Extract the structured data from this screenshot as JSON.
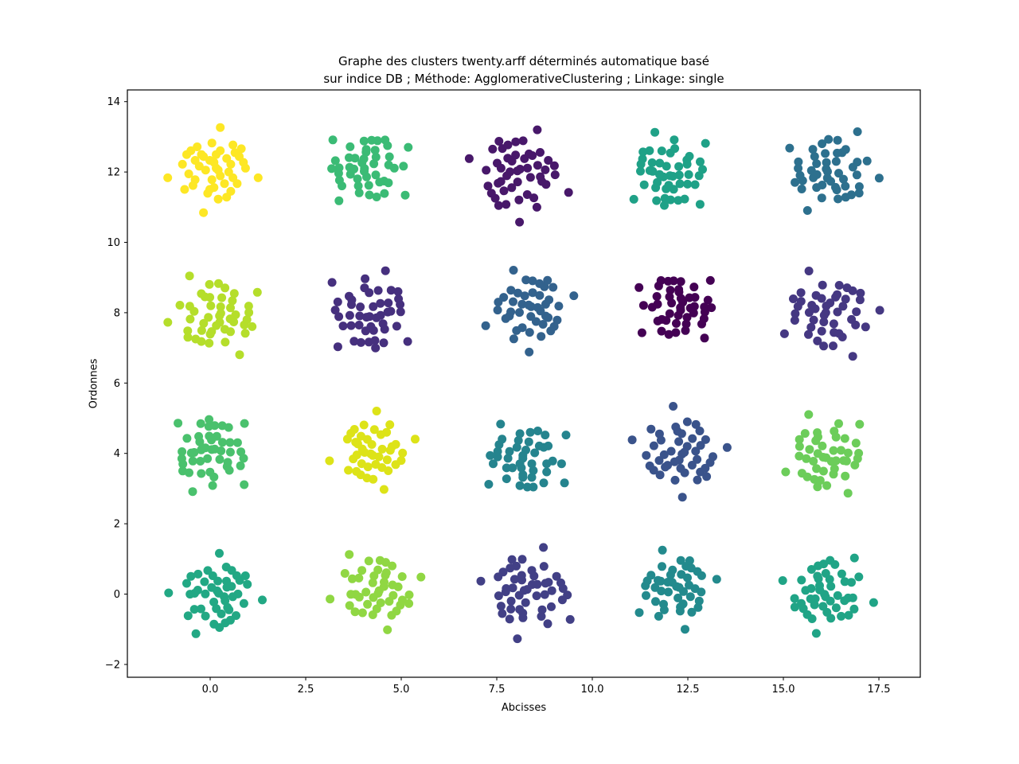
{
  "figure": {
    "title_line1": "Graphe des clusters twenty.arff déterminés automatique basé",
    "title_line2": "sur indice DB ; Méthode: AgglomerativeClustering ; Linkage: single"
  },
  "chart_data": {
    "type": "scatter",
    "title": "Graphe des clusters twenty.arff déterminés automatique basé sur indice DB ; Méthode: AgglomerativeClustering ; Linkage: single",
    "xlabel": "Abcisses",
    "ylabel": "Ordonnes",
    "xlim": [
      -2.167,
      18.583
    ],
    "ylim": [
      -2.364,
      14.333
    ],
    "grid": false,
    "legend": "none",
    "marker_radius_px": 5.5,
    "xticks": [
      {
        "v": 0.0,
        "label": "0.0"
      },
      {
        "v": 2.5,
        "label": "2.5"
      },
      {
        "v": 5.0,
        "label": "5.0"
      },
      {
        "v": 7.5,
        "label": "7.5"
      },
      {
        "v": 10.0,
        "label": "10.0"
      },
      {
        "v": 12.5,
        "label": "12.5"
      },
      {
        "v": 15.0,
        "label": "15.0"
      },
      {
        "v": 17.5,
        "label": "17.5"
      }
    ],
    "yticks": [
      {
        "v": -2,
        "label": "−2"
      },
      {
        "v": 0,
        "label": "0"
      },
      {
        "v": 2,
        "label": "2"
      },
      {
        "v": 4,
        "label": "4"
      },
      {
        "v": 6,
        "label": "6"
      },
      {
        "v": 8,
        "label": "8"
      },
      {
        "v": 10,
        "label": "10"
      },
      {
        "v": 12,
        "label": "12"
      },
      {
        "v": 14,
        "label": "14"
      }
    ],
    "clusters": [
      {
        "id": "cluster-x0-y12",
        "center": [
          0.1,
          12.0
        ],
        "color": "#fde725",
        "n": 44,
        "scale": 0.55,
        "angle": 0,
        "flip": false
      },
      {
        "id": "cluster-x4-y12",
        "center": [
          4.15,
          12.05
        ],
        "color": "#3bbb75",
        "n": 46,
        "scale": 0.55,
        "angle": 40,
        "flip": true
      },
      {
        "id": "cluster-x8-y12",
        "center": [
          8.15,
          11.95
        ],
        "color": "#48186a",
        "n": 48,
        "scale": 0.62,
        "angle": 80,
        "flip": false
      },
      {
        "id": "cluster-x12-y12",
        "center": [
          12.1,
          12.0
        ],
        "color": "#1fa187",
        "n": 46,
        "scale": 0.55,
        "angle": 120,
        "flip": true
      },
      {
        "id": "cluster-x16-y12",
        "center": [
          16.25,
          12.1
        ],
        "color": "#2d708e",
        "n": 46,
        "scale": 0.58,
        "angle": 160,
        "flip": false
      },
      {
        "id": "cluster-x0-y8",
        "center": [
          0.15,
          8.0
        ],
        "color": "#b5de2b",
        "n": 46,
        "scale": 0.58,
        "angle": 200,
        "flip": true
      },
      {
        "id": "cluster-x4-y8",
        "center": [
          4.1,
          8.0
        ],
        "color": "#46307e",
        "n": 46,
        "scale": 0.58,
        "angle": 240,
        "flip": false
      },
      {
        "id": "cluster-x8-y8",
        "center": [
          8.3,
          8.1
        ],
        "color": "#33628d",
        "n": 44,
        "scale": 0.55,
        "angle": 280,
        "flip": true
      },
      {
        "id": "cluster-x12-y8",
        "center": [
          12.2,
          8.1
        ],
        "color": "#440154",
        "n": 46,
        "scale": 0.52,
        "angle": 320,
        "flip": false
      },
      {
        "id": "cluster-x16-y8",
        "center": [
          16.2,
          7.9
        ],
        "color": "#453882",
        "n": 46,
        "scale": 0.6,
        "angle": 15,
        "flip": true
      },
      {
        "id": "cluster-x0-y4",
        "center": [
          0.1,
          4.0
        ],
        "color": "#4ac16d",
        "n": 46,
        "scale": 0.55,
        "angle": 55,
        "flip": false
      },
      {
        "id": "cluster-x4-y4",
        "center": [
          4.3,
          4.05
        ],
        "color": "#dde318",
        "n": 42,
        "scale": 0.52,
        "angle": 95,
        "flip": true
      },
      {
        "id": "cluster-x8-y4",
        "center": [
          8.3,
          3.9
        ],
        "color": "#25848e",
        "n": 44,
        "scale": 0.55,
        "angle": 135,
        "flip": false
      },
      {
        "id": "cluster-x12-y4",
        "center": [
          12.3,
          4.1
        ],
        "color": "#3a538b",
        "n": 44,
        "scale": 0.58,
        "angle": 175,
        "flip": true
      },
      {
        "id": "cluster-x16-y4",
        "center": [
          16.1,
          4.0
        ],
        "color": "#6ccd5a",
        "n": 44,
        "scale": 0.55,
        "angle": 215,
        "flip": false
      },
      {
        "id": "cluster-x0-y0",
        "center": [
          0.1,
          0.0
        ],
        "color": "#22a884",
        "n": 46,
        "scale": 0.55,
        "angle": 255,
        "flip": true
      },
      {
        "id": "cluster-x4-y0",
        "center": [
          4.3,
          0.1
        ],
        "color": "#90d743",
        "n": 44,
        "scale": 0.55,
        "angle": 295,
        "flip": false
      },
      {
        "id": "cluster-x8-y0",
        "center": [
          8.3,
          0.0
        ],
        "color": "#424086",
        "n": 48,
        "scale": 0.6,
        "angle": 335,
        "flip": true
      },
      {
        "id": "cluster-x12-y0",
        "center": [
          12.2,
          0.1
        ],
        "color": "#238a8d",
        "n": 44,
        "scale": 0.52,
        "angle": 25,
        "flip": false
      },
      {
        "id": "cluster-x16-y0",
        "center": [
          16.2,
          0.0
        ],
        "color": "#20a486",
        "n": 46,
        "scale": 0.55,
        "angle": 65,
        "flip": true
      }
    ],
    "offsets_template": [
      [
        0.1,
        0.2
      ],
      [
        -0.5,
        0.8
      ],
      [
        0.9,
        -0.3
      ],
      [
        -1.2,
        -0.1
      ],
      [
        0.3,
        1.1
      ],
      [
        -0.2,
        -0.9
      ],
      [
        1.4,
        0.5
      ],
      [
        -0.8,
        1.3
      ],
      [
        0.6,
        0.7
      ],
      [
        -1.5,
        0.4
      ],
      [
        0.2,
        -1.4
      ],
      [
        1.0,
        1.0
      ],
      [
        -0.4,
        0.1
      ],
      [
        0.8,
        -1.0
      ],
      [
        -1.0,
        -0.7
      ],
      [
        0.0,
        0.5
      ],
      [
        2.1,
        -0.3
      ],
      [
        -0.5,
        -2.1
      ],
      [
        0.3,
        2.3
      ],
      [
        -1.3,
        0.9
      ],
      [
        0.7,
        0.0
      ],
      [
        -0.1,
        -0.4
      ],
      [
        1.2,
        0.8
      ],
      [
        -0.9,
        0.6
      ],
      [
        0.5,
        -0.6
      ],
      [
        -2.2,
        -0.3
      ],
      [
        0.1,
        0.9
      ],
      [
        0.9,
        1.4
      ],
      [
        -0.3,
        -1.1
      ],
      [
        1.5,
        0.2
      ],
      [
        -0.7,
        0.3
      ],
      [
        0.3,
        -0.2
      ],
      [
        -1.1,
        1.1
      ],
      [
        0.6,
        -1.3
      ],
      [
        -0.2,
        0.6
      ],
      [
        1.1,
        -0.6
      ],
      [
        -1.4,
        -0.9
      ],
      [
        0.0,
        -0.8
      ],
      [
        0.8,
        0.4
      ],
      [
        -0.6,
        0.9
      ],
      [
        0.2,
        0.1
      ],
      [
        -0.9,
        -0.4
      ],
      [
        1.3,
        1.2
      ],
      [
        -0.1,
        1.5
      ],
      [
        0.5,
        0.5
      ],
      [
        -1.6,
        0.7
      ],
      [
        0.35,
        -0.95
      ],
      [
        0.95,
        -0.15
      ]
    ],
    "colors": {
      "background": "#ffffff",
      "axes_frame": "#000000",
      "text": "#000000"
    }
  }
}
